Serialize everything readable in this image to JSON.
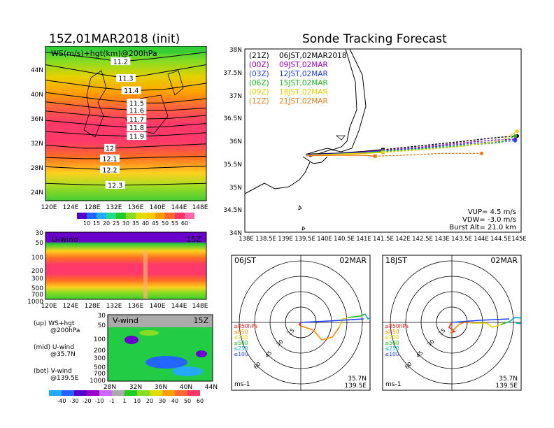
{
  "left_title": "15Z,01MAR2018 (init)",
  "right_title": "Sonde Tracking Forecast",
  "ws_panel": {
    "label": "WS(m/s)+hgt(km)@200hPa",
    "lat_ticks": [
      "44N",
      "40N",
      "36N",
      "32N",
      "28N",
      "24N"
    ],
    "lon_ticks": [
      "120E",
      "124E",
      "128E",
      "132E",
      "136E",
      "140E",
      "144E",
      "148E"
    ],
    "contour_labels": [
      "11.2",
      "11.3",
      "11.4",
      "11.5",
      "11.6",
      "11.7",
      "11.8",
      "11.9",
      "12",
      "12.1",
      "12.2",
      "12.3"
    ],
    "colorbar_ticks": [
      "10",
      "15",
      "20",
      "25",
      "30",
      "35",
      "40",
      "45",
      "50",
      "55",
      "60"
    ]
  },
  "u_panel": {
    "label": "U-wind",
    "time": "15Z",
    "p_ticks": [
      "30",
      "50",
      "100",
      "200",
      "300",
      "500",
      "700",
      "1000"
    ],
    "lon_ticks": [
      "120E",
      "124E",
      "128E",
      "132E",
      "136E",
      "140E",
      "144E",
      "148E"
    ]
  },
  "v_panel": {
    "label": "V-wind",
    "time": "15Z",
    "p_ticks": [
      "30",
      "50",
      "100",
      "200",
      "300",
      "500",
      "700",
      "1000"
    ],
    "lat_ticks": [
      "28N",
      "32N",
      "36N",
      "40N",
      "44N"
    ]
  },
  "legend_notes": {
    "up_1": "(up) WS+hgt",
    "up_2": "@200hPa",
    "mid_1": "(mid) U-wind",
    "mid_2": "@35.7N",
    "bot_1": "(bot) V-wind",
    "bot_2": "@139.5E"
  },
  "wind_colorbar_ticks": [
    "-40",
    "-30",
    "-20",
    "-10",
    "-1",
    "1",
    "10",
    "20",
    "30",
    "40",
    "50",
    "60"
  ],
  "track_map": {
    "lat_ticks": [
      "38N",
      "37.5N",
      "37N",
      "36.5N",
      "36N",
      "35.5N",
      "35N",
      "34.5N",
      "34N"
    ],
    "lon_ticks": [
      "138E",
      "138.5E",
      "139E",
      "139.5E",
      "140E",
      "140.5E",
      "141E",
      "141.5E",
      "142E",
      "142.5E",
      "143E",
      "143.5E",
      "144E",
      "144.5E",
      "145E"
    ],
    "legend": [
      {
        "utc": "(21Z)",
        "jst": "06JST,02MAR2018",
        "color": "#000000"
      },
      {
        "utc": "(00Z)",
        "jst": "09JST,02MAR",
        "color": "#9900cc"
      },
      {
        "utc": "(03Z)",
        "jst": "12JST,02MAR",
        "color": "#1f3fff"
      },
      {
        "utc": "(06Z)",
        "jst": "15JST,02MAR",
        "color": "#22bb22"
      },
      {
        "utc": "(09Z)",
        "jst": "18JST,02MAR",
        "color": "#e6d000"
      },
      {
        "utc": "(12Z)",
        "jst": "21JST,02MAR",
        "color": "#ee7a1a"
      }
    ],
    "vup": "VUP= 4.5 m/s",
    "vdw": "VDW= -3.0 m/s",
    "burst": "Burst Alt= 21.0 km"
  },
  "hodo_left": {
    "time": "06JST",
    "date": "02MAR",
    "rings": [
      "15",
      "30",
      "45",
      "60"
    ],
    "levels": [
      {
        "text": "≥850hPa",
        "color": "#ff2020"
      },
      {
        "text": "≤850",
        "color": "#ff8800"
      },
      {
        "text": "≤700",
        "color": "#e6d000"
      },
      {
        "text": "≤500",
        "color": "#22bb22"
      },
      {
        "text": "≤250",
        "color": "#00aacc"
      },
      {
        "text": "≤100",
        "color": "#1f3fff"
      }
    ],
    "unit": "ms-1",
    "lat": "35.7N",
    "lon": "139.5E"
  },
  "hodo_right": {
    "time": "18JST",
    "date": "02MAR",
    "rings": [
      "15",
      "30",
      "45",
      "60"
    ],
    "levels": [
      {
        "text": "≥850hPa",
        "color": "#ff2020"
      },
      {
        "text": "≤850",
        "color": "#ff8800"
      },
      {
        "text": "≤700",
        "color": "#e6d000"
      },
      {
        "text": "≤500",
        "color": "#22bb22"
      },
      {
        "text": "≤250",
        "color": "#00aacc"
      },
      {
        "text": "≤100",
        "color": "#1f3fff"
      }
    ],
    "unit": "ms-1",
    "lat": "35.7N",
    "lon": "139.5E"
  },
  "chart_data": [
    {
      "type": "line",
      "title": "Sonde Tracking Forecast",
      "xlabel": "",
      "ylabel": "",
      "xlim": [
        138,
        145
      ],
      "ylim": [
        34,
        38
      ],
      "series": [
        {
          "name": "(21Z) 06JST,02MAR2018",
          "x": [
            139.55,
            140.3,
            141.0,
            141.5,
            142.5,
            143.5,
            144.3,
            144.9
          ],
          "y": [
            35.7,
            35.72,
            35.76,
            35.8,
            35.89,
            35.98,
            36.06,
            36.1
          ]
        },
        {
          "name": "(00Z) 09JST,02MAR",
          "x": [
            139.55,
            140.3,
            141.0,
            141.5,
            142.5,
            143.5,
            144.3,
            144.85
          ],
          "y": [
            35.69,
            35.71,
            35.75,
            35.78,
            35.86,
            35.95,
            36.01,
            36.03
          ]
        },
        {
          "name": "(03Z) 12JST,02MAR",
          "x": [
            139.55,
            140.3,
            141.0,
            141.5,
            142.5,
            143.5,
            144.3,
            144.85
          ],
          "y": [
            35.69,
            35.71,
            35.74,
            35.77,
            35.84,
            35.92,
            35.97,
            36.0
          ]
        },
        {
          "name": "(06Z) 15JST,02MAR",
          "x": [
            139.55,
            140.3,
            141.0,
            141.5,
            142.5,
            143.5,
            144.5,
            144.85
          ],
          "y": [
            35.68,
            35.7,
            35.73,
            35.76,
            35.82,
            35.89,
            35.96,
            36.1
          ]
        },
        {
          "name": "(09Z) 18JST,02MAR",
          "x": [
            139.55,
            140.3,
            141.0,
            141.5,
            142.5,
            143.5,
            144.5,
            144.9
          ],
          "y": [
            35.68,
            35.7,
            35.72,
            35.74,
            35.8,
            35.87,
            36.0,
            36.2
          ]
        },
        {
          "name": "(12Z) 21JST,02MAR",
          "x": [
            139.55,
            140.3,
            141.0,
            141.3,
            142.0,
            143.0,
            144.0
          ],
          "y": [
            35.67,
            35.68,
            35.68,
            35.66,
            35.68,
            35.72,
            35.72
          ]
        }
      ]
    },
    {
      "type": "line",
      "title": "WS(m/s)+hgt(km)@200hPa",
      "xlim": [
        120,
        150
      ],
      "ylim": [
        22,
        47
      ],
      "series": [
        {
          "name": "11.2",
          "x": [
            120,
            130,
            134,
            140,
            150
          ],
          "y": [
            46,
            45,
            44.5,
            45,
            46
          ]
        },
        {
          "name": "11.3",
          "x": [
            120,
            130,
            135,
            140,
            150
          ],
          "y": [
            44,
            42.5,
            41.8,
            42.5,
            44
          ]
        },
        {
          "name": "11.4",
          "x": [
            120,
            130,
            136,
            142,
            150
          ],
          "y": [
            41.5,
            40.3,
            39.8,
            40,
            41
          ]
        },
        {
          "name": "11.5",
          "x": [
            120,
            130,
            137,
            142,
            150
          ],
          "y": [
            39.5,
            38.4,
            37.8,
            37.8,
            38.5
          ]
        },
        {
          "name": "11.6",
          "x": [
            120,
            130,
            137,
            143,
            150
          ],
          "y": [
            38,
            37,
            36.6,
            36.6,
            37
          ]
        },
        {
          "name": "11.7",
          "x": [
            120,
            130,
            137,
            143,
            150
          ],
          "y": [
            36.5,
            35.7,
            35.2,
            35.3,
            35.8
          ]
        },
        {
          "name": "11.8",
          "x": [
            120,
            130,
            137,
            143,
            150
          ],
          "y": [
            35,
            34.2,
            33.8,
            34,
            34.5
          ]
        },
        {
          "name": "11.9",
          "x": [
            120,
            130,
            137,
            143,
            150
          ],
          "y": [
            33.2,
            32.6,
            32.4,
            32.6,
            33
          ]
        },
        {
          "name": "12",
          "x": [
            120,
            127,
            132,
            140,
            150
          ],
          "y": [
            31,
            30.5,
            30.5,
            30.8,
            31.2
          ]
        },
        {
          "name": "12.1",
          "x": [
            120,
            127,
            132,
            140,
            150
          ],
          "y": [
            29,
            28.8,
            28.8,
            29,
            29.2
          ]
        },
        {
          "name": "12.2",
          "x": [
            120,
            127,
            132,
            140,
            150
          ],
          "y": [
            27.5,
            27.2,
            27,
            27.3,
            27.6
          ]
        },
        {
          "name": "12.3",
          "x": [
            120,
            127,
            133,
            140,
            150
          ],
          "y": [
            24.8,
            24.6,
            24.5,
            24.6,
            24.8
          ]
        }
      ]
    }
  ]
}
